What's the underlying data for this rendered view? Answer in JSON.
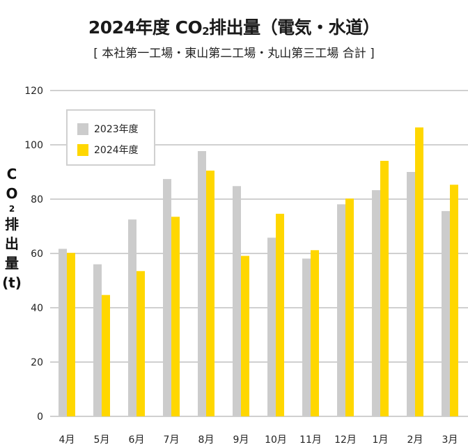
{
  "chart_data": {
    "type": "bar",
    "title": "2024年度 CO2排出量（電気・水道）",
    "title_parts": {
      "pre": "2024年度 CO",
      "sub": "2",
      "post": "排出量（電気・水道）"
    },
    "subtitle": "[ 本社第一工場・東山第二工場・丸山第三工場 合計 ]",
    "ylabel_parts": [
      "C",
      "O",
      "2",
      "排",
      "出",
      "量",
      "(t)"
    ],
    "categories": [
      "4月",
      "5月",
      "6月",
      "7月",
      "8月",
      "9月",
      "10月",
      "11月",
      "12月",
      "1月",
      "2月",
      "3月"
    ],
    "series": [
      {
        "name": "2023年度",
        "color": "#cccccc",
        "values": [
          61.7,
          56.0,
          72.5,
          87.4,
          97.7,
          84.8,
          65.8,
          58.1,
          78.1,
          83.3,
          90.0,
          75.6
        ]
      },
      {
        "name": "2024年度",
        "color": "#ffd700",
        "values": [
          60.2,
          44.7,
          53.5,
          73.5,
          90.5,
          59.1,
          74.6,
          61.2,
          80.2,
          94.1,
          106.4,
          85.3
        ]
      }
    ],
    "ylim": [
      0,
      120
    ],
    "yticks": [
      0,
      20,
      40,
      60,
      80,
      100,
      120
    ],
    "grid": true,
    "legend_position": "top-left"
  }
}
